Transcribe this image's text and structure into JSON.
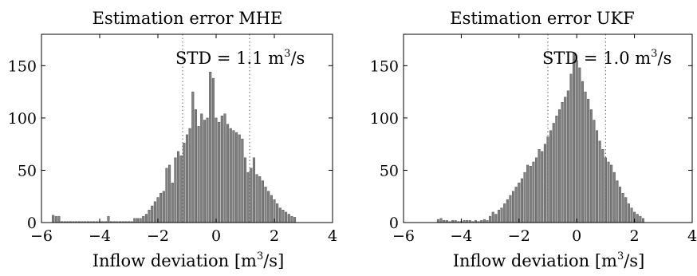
{
  "chart_data": [
    {
      "type": "bar",
      "title": "Estimation error MHE",
      "xlabel_prefix": "Inflow deviation [m",
      "xlabel_exp": "3",
      "xlabel_suffix": "/s]",
      "xlim": [
        -6,
        4
      ],
      "ylim": [
        0,
        180
      ],
      "xticks": [
        -6,
        -4,
        -2,
        0,
        2,
        4
      ],
      "xtick_labels": [
        "−6",
        "−4",
        "−2",
        "0",
        "2",
        "4"
      ],
      "yticks": [
        0,
        50,
        100,
        150
      ],
      "ytick_labels": [
        "0",
        "50",
        "100",
        "150"
      ],
      "std_prefix": "STD = 1.1 m",
      "std_exp": "3",
      "std_suffix": "/s",
      "std_lines": [
        -1.15,
        1.15
      ],
      "bar_color": "#808080",
      "bins": [
        {
          "x": -5.6,
          "y": 7
        },
        {
          "x": -5.5,
          "y": 6
        },
        {
          "x": -5.4,
          "y": 6
        },
        {
          "x": -5.3,
          "y": 1
        },
        {
          "x": -5.2,
          "y": 1
        },
        {
          "x": -5.1,
          "y": 1
        },
        {
          "x": -5.0,
          "y": 1
        },
        {
          "x": -4.9,
          "y": 1
        },
        {
          "x": -4.8,
          "y": 1
        },
        {
          "x": -4.7,
          "y": 1
        },
        {
          "x": -4.6,
          "y": 1
        },
        {
          "x": -4.5,
          "y": 1
        },
        {
          "x": -4.4,
          "y": 1
        },
        {
          "x": -4.3,
          "y": 1
        },
        {
          "x": -4.2,
          "y": 1
        },
        {
          "x": -4.1,
          "y": 1
        },
        {
          "x": -4.0,
          "y": 1
        },
        {
          "x": -3.9,
          "y": 1
        },
        {
          "x": -3.8,
          "y": 1
        },
        {
          "x": -3.7,
          "y": 6
        },
        {
          "x": -3.6,
          "y": 1
        },
        {
          "x": -3.5,
          "y": 1
        },
        {
          "x": -3.4,
          "y": 1
        },
        {
          "x": -3.3,
          "y": 1
        },
        {
          "x": -3.2,
          "y": 1
        },
        {
          "x": -3.1,
          "y": 1
        },
        {
          "x": -3.0,
          "y": 1
        },
        {
          "x": -2.9,
          "y": 1
        },
        {
          "x": -2.8,
          "y": 4
        },
        {
          "x": -2.7,
          "y": 4
        },
        {
          "x": -2.6,
          "y": 4
        },
        {
          "x": -2.5,
          "y": 6
        },
        {
          "x": -2.4,
          "y": 8
        },
        {
          "x": -2.3,
          "y": 12
        },
        {
          "x": -2.2,
          "y": 16
        },
        {
          "x": -2.1,
          "y": 20
        },
        {
          "x": -2.0,
          "y": 24
        },
        {
          "x": -1.9,
          "y": 28
        },
        {
          "x": -1.8,
          "y": 30
        },
        {
          "x": -1.7,
          "y": 52
        },
        {
          "x": -1.6,
          "y": 55
        },
        {
          "x": -1.5,
          "y": 38
        },
        {
          "x": -1.4,
          "y": 62
        },
        {
          "x": -1.3,
          "y": 68
        },
        {
          "x": -1.2,
          "y": 64
        },
        {
          "x": -1.1,
          "y": 76
        },
        {
          "x": -1.0,
          "y": 84
        },
        {
          "x": -0.9,
          "y": 90
        },
        {
          "x": -0.8,
          "y": 125
        },
        {
          "x": -0.7,
          "y": 108
        },
        {
          "x": -0.6,
          "y": 92
        },
        {
          "x": -0.5,
          "y": 104
        },
        {
          "x": -0.4,
          "y": 98
        },
        {
          "x": -0.3,
          "y": 100
        },
        {
          "x": -0.2,
          "y": 144
        },
        {
          "x": -0.1,
          "y": 138
        },
        {
          "x": 0.0,
          "y": 100
        },
        {
          "x": 0.1,
          "y": 96
        },
        {
          "x": 0.2,
          "y": 102
        },
        {
          "x": 0.3,
          "y": 104
        },
        {
          "x": 0.4,
          "y": 94
        },
        {
          "x": 0.5,
          "y": 90
        },
        {
          "x": 0.6,
          "y": 88
        },
        {
          "x": 0.7,
          "y": 86
        },
        {
          "x": 0.8,
          "y": 84
        },
        {
          "x": 0.9,
          "y": 80
        },
        {
          "x": 1.0,
          "y": 62
        },
        {
          "x": 1.1,
          "y": 48
        },
        {
          "x": 1.2,
          "y": 52
        },
        {
          "x": 1.3,
          "y": 62
        },
        {
          "x": 1.4,
          "y": 46
        },
        {
          "x": 1.5,
          "y": 44
        },
        {
          "x": 1.6,
          "y": 40
        },
        {
          "x": 1.7,
          "y": 34
        },
        {
          "x": 1.8,
          "y": 30
        },
        {
          "x": 1.9,
          "y": 26
        },
        {
          "x": 2.0,
          "y": 22
        },
        {
          "x": 2.1,
          "y": 18
        },
        {
          "x": 2.2,
          "y": 14
        },
        {
          "x": 2.3,
          "y": 12
        },
        {
          "x": 2.4,
          "y": 10
        },
        {
          "x": 2.5,
          "y": 8
        },
        {
          "x": 2.6,
          "y": 6
        },
        {
          "x": 2.7,
          "y": 5
        }
      ]
    },
    {
      "type": "bar",
      "title": "Estimation error UKF",
      "xlabel_prefix": "Inflow deviation [m",
      "xlabel_exp": "3",
      "xlabel_suffix": "/s]",
      "xlim": [
        -6,
        4
      ],
      "ylim": [
        0,
        180
      ],
      "xticks": [
        -6,
        -4,
        -2,
        0,
        2,
        4
      ],
      "xtick_labels": [
        "−6",
        "−4",
        "−2",
        "0",
        "2",
        "4"
      ],
      "yticks": [
        0,
        50,
        100,
        150
      ],
      "ytick_labels": [
        "0",
        "50",
        "100",
        "150"
      ],
      "std_prefix": "STD = 1.0 m",
      "std_exp": "3",
      "std_suffix": "/s",
      "std_lines": [
        -1.0,
        1.0
      ],
      "bar_color": "#808080",
      "bins": [
        {
          "x": -4.8,
          "y": 3
        },
        {
          "x": -4.7,
          "y": 4
        },
        {
          "x": -4.6,
          "y": 2
        },
        {
          "x": -4.5,
          "y": 2
        },
        {
          "x": -4.4,
          "y": 1
        },
        {
          "x": -4.3,
          "y": 2
        },
        {
          "x": -4.2,
          "y": 2
        },
        {
          "x": -4.1,
          "y": 1
        },
        {
          "x": -4.0,
          "y": 1
        },
        {
          "x": -3.9,
          "y": 2
        },
        {
          "x": -3.8,
          "y": 2
        },
        {
          "x": -3.7,
          "y": 2
        },
        {
          "x": -3.6,
          "y": 1
        },
        {
          "x": -3.5,
          "y": 2
        },
        {
          "x": -3.4,
          "y": 1
        },
        {
          "x": -3.3,
          "y": 2
        },
        {
          "x": -3.2,
          "y": 3
        },
        {
          "x": -3.1,
          "y": 2
        },
        {
          "x": -3.0,
          "y": 6
        },
        {
          "x": -2.9,
          "y": 10
        },
        {
          "x": -2.8,
          "y": 8
        },
        {
          "x": -2.7,
          "y": 12
        },
        {
          "x": -2.6,
          "y": 14
        },
        {
          "x": -2.5,
          "y": 18
        },
        {
          "x": -2.4,
          "y": 22
        },
        {
          "x": -2.3,
          "y": 26
        },
        {
          "x": -2.2,
          "y": 30
        },
        {
          "x": -2.1,
          "y": 34
        },
        {
          "x": -2.0,
          "y": 38
        },
        {
          "x": -1.9,
          "y": 42
        },
        {
          "x": -1.8,
          "y": 48
        },
        {
          "x": -1.7,
          "y": 55
        },
        {
          "x": -1.6,
          "y": 54
        },
        {
          "x": -1.5,
          "y": 58
        },
        {
          "x": -1.4,
          "y": 62
        },
        {
          "x": -1.3,
          "y": 70
        },
        {
          "x": -1.2,
          "y": 68
        },
        {
          "x": -1.1,
          "y": 75
        },
        {
          "x": -1.0,
          "y": 82
        },
        {
          "x": -0.9,
          "y": 88
        },
        {
          "x": -0.8,
          "y": 95
        },
        {
          "x": -0.7,
          "y": 102
        },
        {
          "x": -0.6,
          "y": 108
        },
        {
          "x": -0.5,
          "y": 115
        },
        {
          "x": -0.4,
          "y": 120
        },
        {
          "x": -0.3,
          "y": 126
        },
        {
          "x": -0.2,
          "y": 142
        },
        {
          "x": -0.1,
          "y": 162
        },
        {
          "x": 0.0,
          "y": 155
        },
        {
          "x": 0.1,
          "y": 148
        },
        {
          "x": 0.2,
          "y": 135
        },
        {
          "x": 0.3,
          "y": 125
        },
        {
          "x": 0.4,
          "y": 118
        },
        {
          "x": 0.5,
          "y": 108
        },
        {
          "x": 0.6,
          "y": 98
        },
        {
          "x": 0.7,
          "y": 88
        },
        {
          "x": 0.8,
          "y": 78
        },
        {
          "x": 0.9,
          "y": 70
        },
        {
          "x": 1.0,
          "y": 62
        },
        {
          "x": 1.1,
          "y": 58
        },
        {
          "x": 1.2,
          "y": 55
        },
        {
          "x": 1.3,
          "y": 48
        },
        {
          "x": 1.4,
          "y": 40
        },
        {
          "x": 1.5,
          "y": 34
        },
        {
          "x": 1.6,
          "y": 28
        },
        {
          "x": 1.7,
          "y": 24
        },
        {
          "x": 1.8,
          "y": 18
        },
        {
          "x": 1.9,
          "y": 14
        },
        {
          "x": 2.0,
          "y": 10
        },
        {
          "x": 2.1,
          "y": 8
        },
        {
          "x": 2.2,
          "y": 6
        },
        {
          "x": 2.3,
          "y": 4
        }
      ]
    }
  ]
}
